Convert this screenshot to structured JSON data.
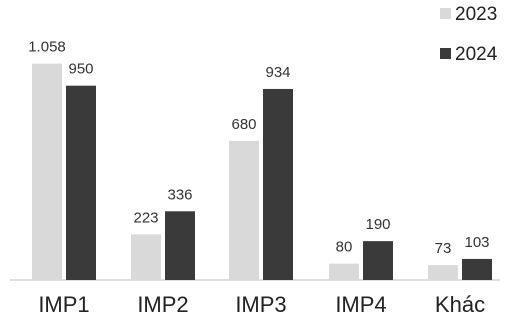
{
  "chart_data": {
    "type": "bar",
    "categories": [
      "IMP1",
      "IMP2",
      "IMP3",
      "IMP4",
      "Khác"
    ],
    "series": [
      {
        "name": "2023",
        "values": [
          1058,
          223,
          680,
          80,
          73
        ],
        "value_labels": [
          "1.058",
          "223",
          "680",
          "80",
          "73"
        ],
        "color": "#d9d9d9"
      },
      {
        "name": "2024",
        "values": [
          950,
          336,
          934,
          190,
          103
        ],
        "value_labels": [
          "950",
          "336",
          "934",
          "190",
          "103"
        ],
        "color": "#3a3a3a"
      }
    ],
    "ylim": [
      0,
      1100
    ],
    "grid": false,
    "legend_position": "top-right"
  }
}
